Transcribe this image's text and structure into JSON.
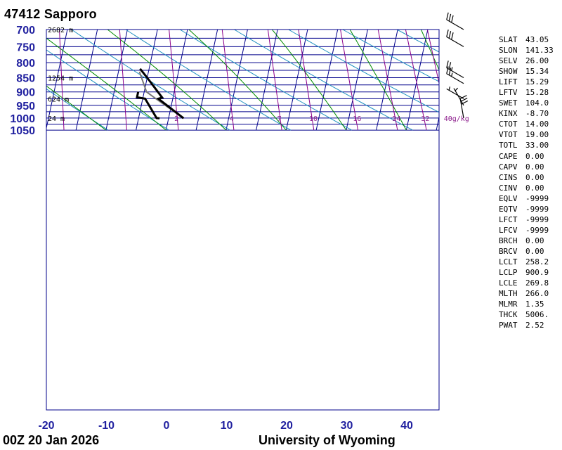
{
  "header": {
    "station_title": "47412  Sapporo"
  },
  "footer": {
    "time_label": "00Z 20 Jan 2026",
    "source_label": "University of Wyoming"
  },
  "colors": {
    "isobar": "#00008b",
    "dry_adiabat": "#1e90c0",
    "moist_adiabat": "#008c00",
    "mixing_ratio": "#8b008b",
    "temperature": "#000000",
    "dewpoint": "#000000",
    "parcel": "#777777"
  },
  "chart_data": {
    "type": "skew-t",
    "pressure_levels": [
      700,
      750,
      800,
      850,
      900,
      950,
      1000,
      1050
    ],
    "pressure_minor_levels": [
      725,
      775,
      825,
      875,
      925,
      975,
      1025
    ],
    "temperature_ticks": [
      -20,
      -10,
      0,
      10,
      20,
      30,
      40
    ],
    "height_labels": [
      {
        "p": 700,
        "text": "2682 m"
      },
      {
        "p": 850,
        "text": "1254 m"
      },
      {
        "p": 925,
        "text": "624 m"
      },
      {
        "p": 1000,
        "text": "24 m"
      }
    ],
    "mixing_ratio_labels": [
      "2",
      "4",
      "7",
      "10",
      "16",
      "24",
      "32",
      "40g/kg"
    ],
    "temperature_profile": [
      {
        "p": 1001,
        "t": -7.5
      },
      {
        "p": 925,
        "t": -12.4
      },
      {
        "p": 921,
        "t": -11.8
      },
      {
        "p": 850,
        "t": -15.0
      },
      {
        "p": 820,
        "t": -16.5
      }
    ],
    "dewpoint_profile": [
      {
        "p": 1001,
        "t": -11.5
      },
      {
        "p": 1000,
        "t": -12.0
      },
      {
        "p": 925,
        "t": -14.6
      },
      {
        "p": 920,
        "t": -16.0
      },
      {
        "p": 900,
        "t": -16.0
      }
    ],
    "parcel_profile": [
      {
        "p": 1001,
        "t": -7.5
      },
      {
        "p": 925,
        "t": -12.8
      },
      {
        "p": 900,
        "t": -14.6
      },
      {
        "p": 830,
        "t": -16.5
      }
    ],
    "wind_barbs": [
      {
        "p": 700,
        "dir": 300,
        "speed": 30
      },
      {
        "p": 750,
        "dir": 300,
        "speed": 30
      },
      {
        "p": 850,
        "dir": 300,
        "speed": 25
      },
      {
        "p": 870,
        "dir": 300,
        "speed": 25
      },
      {
        "p": 925,
        "dir": 300,
        "speed": 5
      },
      {
        "p": 950,
        "dir": 330,
        "speed": 5
      },
      {
        "p": 1000,
        "dir": 350,
        "speed": 30
      }
    ]
  },
  "indices": [
    {
      "key": "SLAT",
      "value": "43.05"
    },
    {
      "key": "SLON",
      "value": "141.33"
    },
    {
      "key": "SELV",
      "value": "26.00"
    },
    {
      "key": "SHOW",
      "value": "15.34"
    },
    {
      "key": "LIFT",
      "value": "15.29"
    },
    {
      "key": "LFTV",
      "value": "15.28"
    },
    {
      "key": "SWET",
      "value": "104.0"
    },
    {
      "key": "KINX",
      "value": "-8.70"
    },
    {
      "key": "CTOT",
      "value": "14.00"
    },
    {
      "key": "VTOT",
      "value": "19.00"
    },
    {
      "key": "TOTL",
      "value": "33.00"
    },
    {
      "key": "CAPE",
      "value": "0.00"
    },
    {
      "key": "CAPV",
      "value": "0.00"
    },
    {
      "key": "CINS",
      "value": "0.00"
    },
    {
      "key": "CINV",
      "value": "0.00"
    },
    {
      "key": "EQLV",
      "value": "-9999"
    },
    {
      "key": "EQTV",
      "value": "-9999"
    },
    {
      "key": "LFCT",
      "value": "-9999"
    },
    {
      "key": "LFCV",
      "value": "-9999"
    },
    {
      "key": "BRCH",
      "value": "0.00"
    },
    {
      "key": "BRCV",
      "value": "0.00"
    },
    {
      "key": "LCLT",
      "value": "258.2"
    },
    {
      "key": "LCLP",
      "value": "900.9"
    },
    {
      "key": "LCLE",
      "value": "269.8"
    },
    {
      "key": "MLTH",
      "value": "266.0"
    },
    {
      "key": "MLMR",
      "value": "1.35"
    },
    {
      "key": "THCK",
      "value": "5006."
    },
    {
      "key": "PWAT",
      "value": "2.52"
    }
  ]
}
